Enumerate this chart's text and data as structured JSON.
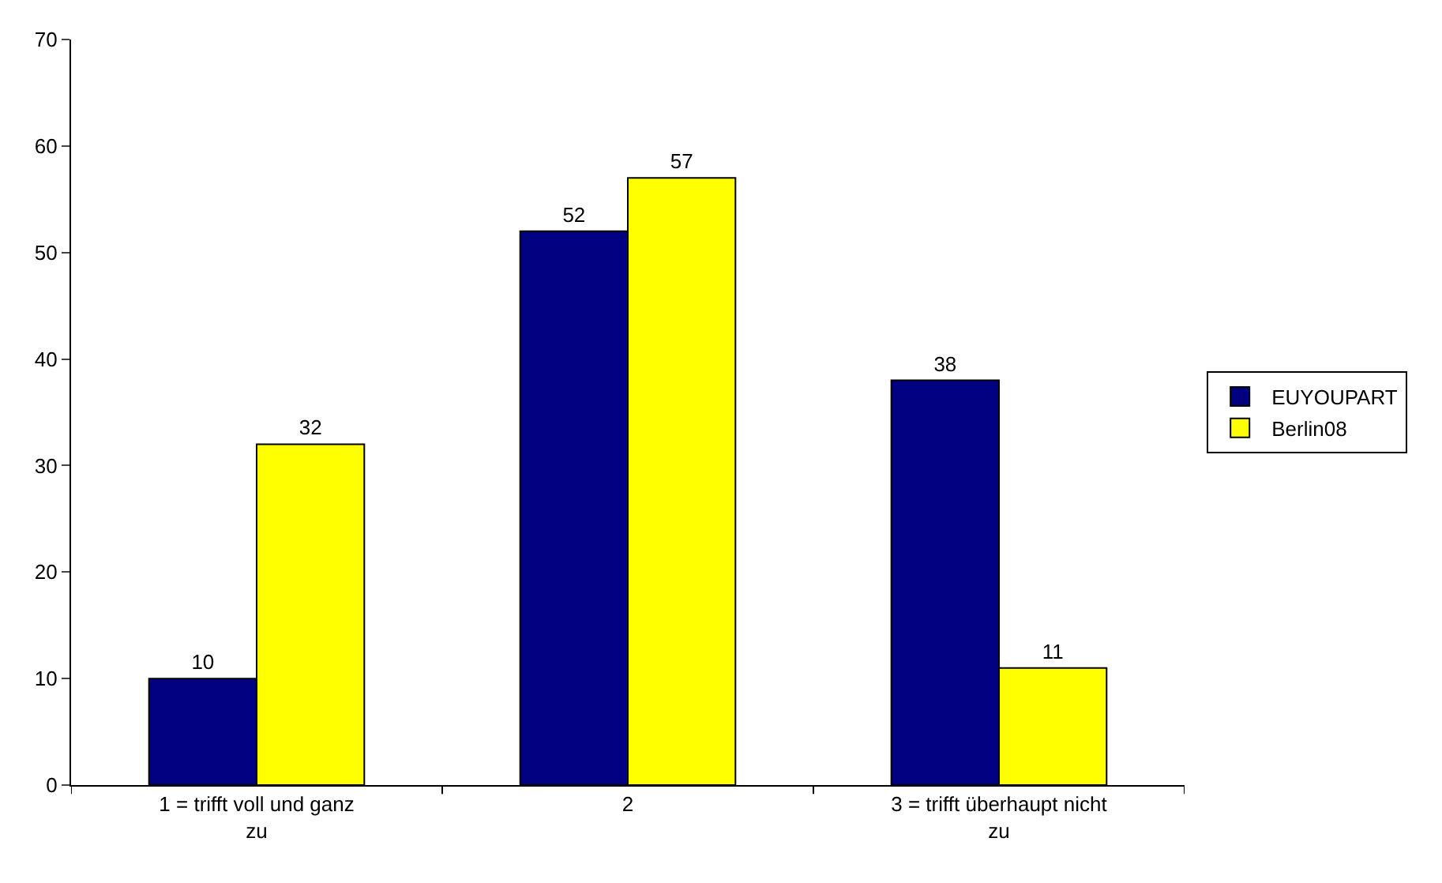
{
  "chart_data": {
    "type": "bar",
    "categories": [
      "1 = trifft voll und ganz zu",
      "2",
      "3 = trifft überhaupt nicht zu"
    ],
    "series": [
      {
        "name": "EUYOUPART",
        "color": "#000080",
        "values": [
          10,
          52,
          38
        ]
      },
      {
        "name": "Berlin08",
        "color": "#ffff00",
        "values": [
          32,
          57,
          11
        ]
      }
    ],
    "ylim": [
      0,
      70
    ],
    "yticks": [
      0,
      10,
      20,
      30,
      40,
      50,
      60,
      70
    ],
    "data_labels": true,
    "grid": false,
    "legend": "right"
  }
}
